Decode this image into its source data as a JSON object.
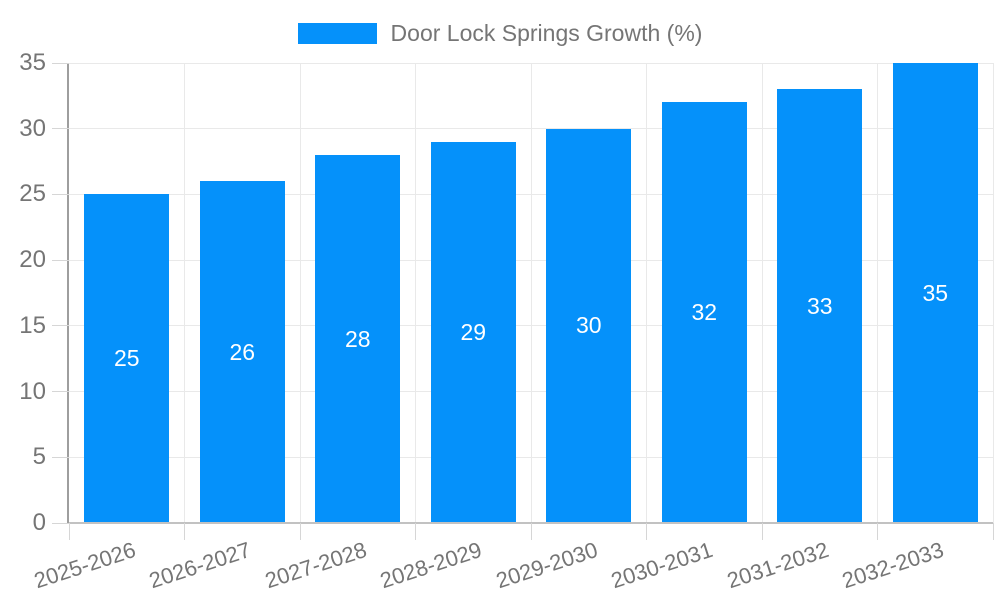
{
  "legend": {
    "label": "Door Lock Springs Growth (%)"
  },
  "chart_data": {
    "type": "bar",
    "title": "Door Lock Springs Growth (%)",
    "categories": [
      "2025-2026",
      "2026-2027",
      "2027-2028",
      "2028-2029",
      "2029-2030",
      "2030-2031",
      "2031-2032",
      "2032-2033"
    ],
    "values": [
      25,
      26,
      28,
      29,
      30,
      32,
      33,
      35
    ],
    "xlabel": "",
    "ylabel": "",
    "ylim": [
      0,
      35
    ],
    "yticks": [
      0,
      5,
      10,
      15,
      20,
      25,
      30,
      35
    ],
    "grid": true,
    "legend_position": "top",
    "bar_labels": [
      "25",
      "26",
      "28",
      "29",
      "30",
      "32",
      "33",
      "35"
    ],
    "bar_label_position": "center"
  },
  "colors": {
    "bar": "#0591fa",
    "bar_label": "#ffffff",
    "axis_text": "#757575",
    "axis_line": "#9e9e9e",
    "x_axis_line": "#c2c2c2",
    "gridline": "#e9e9e9",
    "tick": "#d6d6d6",
    "background": "#ffffff"
  }
}
